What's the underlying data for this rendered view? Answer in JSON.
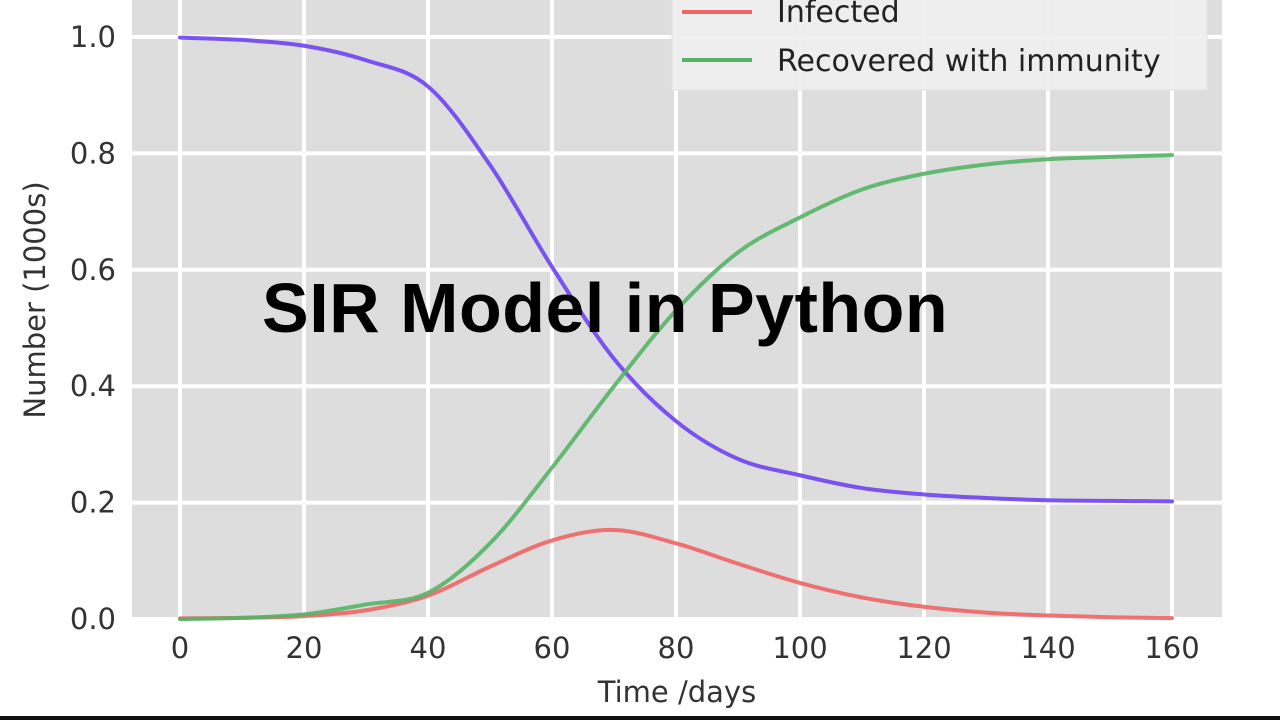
{
  "overlay_title": "SIR Model in Python",
  "chart_data": {
    "type": "line",
    "xlabel": "Time /days",
    "ylabel": "Number (1000s)",
    "xlim": [
      -8,
      167
    ],
    "ylim": [
      0,
      1.05
    ],
    "xticks": [
      0,
      20,
      40,
      60,
      80,
      100,
      120,
      140,
      160
    ],
    "yticks": [
      0.0,
      0.2,
      0.4,
      0.6,
      0.8,
      1.0
    ],
    "grid": true,
    "background": "#dddddd",
    "legend_position": "top-right",
    "x": [
      0,
      10,
      20,
      30,
      40,
      50,
      60,
      70,
      80,
      90,
      100,
      110,
      120,
      130,
      140,
      150,
      160
    ],
    "series": [
      {
        "color": "#6e42f2",
        "values": [
          0.999,
          0.995,
          0.985,
          0.96,
          0.915,
          0.78,
          0.605,
          0.447,
          0.34,
          0.275,
          0.247,
          0.225,
          0.214,
          0.208,
          0.204,
          0.203,
          0.202
        ]
      },
      {
        "name": "Infected",
        "color": "#f06464",
        "values": [
          0.001,
          0.002,
          0.005,
          0.015,
          0.04,
          0.09,
          0.135,
          0.153,
          0.13,
          0.095,
          0.062,
          0.037,
          0.021,
          0.011,
          0.006,
          0.003,
          0.0015
        ]
      },
      {
        "name": "Recovered with immunity",
        "color": "#55b466",
        "values": [
          0,
          0.002,
          0.008,
          0.025,
          0.045,
          0.13,
          0.26,
          0.4,
          0.53,
          0.63,
          0.69,
          0.738,
          0.765,
          0.781,
          0.79,
          0.794,
          0.797
        ]
      }
    ]
  }
}
